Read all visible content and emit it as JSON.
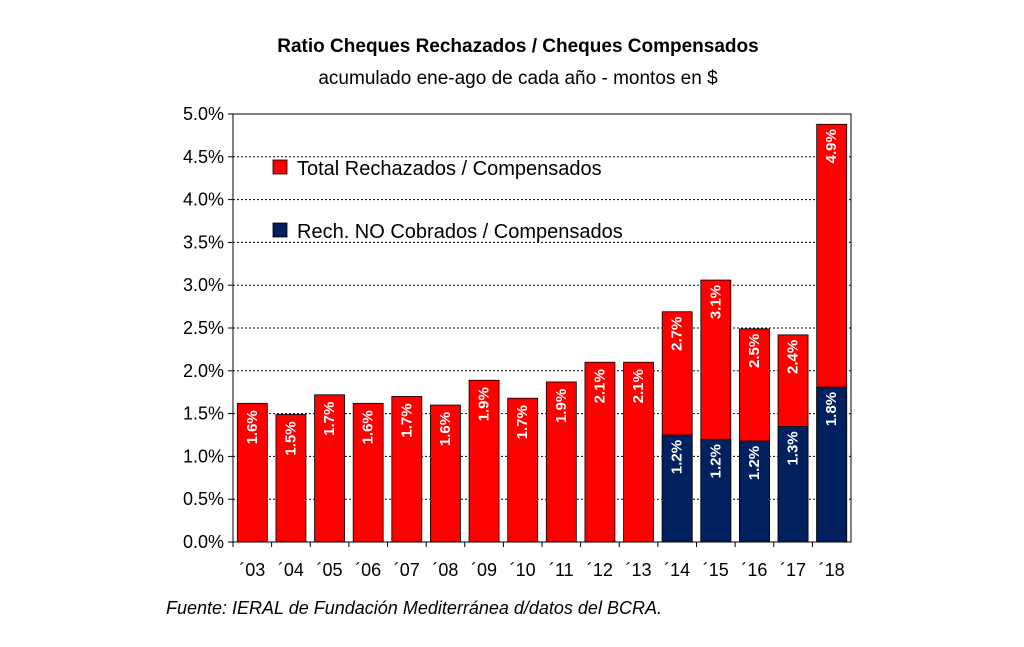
{
  "chart_data": {
    "type": "bar",
    "title": "Ratio Cheques Rechazados / Cheques Compensados",
    "subtitle": "acumulado ene-ago de cada año - montos en $",
    "categories": [
      "´03",
      "´04",
      "´05",
      "´06",
      "´07",
      "´08",
      "´09",
      "´10",
      "´11",
      "´12",
      "´13",
      "´14",
      "´15",
      "´16",
      "´17",
      "´18"
    ],
    "series": [
      {
        "name": "Total Rechazados / Compensados",
        "color": "#ff0000",
        "values": [
          1.62,
          1.49,
          1.72,
          1.62,
          1.7,
          1.6,
          1.89,
          1.68,
          1.87,
          2.1,
          2.1,
          2.69,
          3.06,
          2.49,
          2.42,
          4.88
        ],
        "labels": [
          "1.6%",
          "1.5%",
          "1.7%",
          "1.6%",
          "1.7%",
          "1.6%",
          "1.9%",
          "1.7%",
          "1.9%",
          "2.1%",
          "2.1%",
          "2.7%",
          "3.1%",
          "2.5%",
          "2.4%",
          "4.9%"
        ]
      },
      {
        "name": "Rech. NO Cobrados / Compensados",
        "color": "#002060",
        "values": [
          null,
          null,
          null,
          null,
          null,
          null,
          null,
          null,
          null,
          null,
          null,
          1.25,
          1.2,
          1.18,
          1.35,
          1.81
        ],
        "labels": [
          "",
          "",
          "",
          "",
          "",
          "",
          "",
          "",
          "",
          "",
          "",
          "1.2%",
          "1.2%",
          "1.2%",
          "1.3%",
          "1.8%"
        ]
      }
    ],
    "ylim": [
      0,
      5
    ],
    "yticks": [
      0,
      0.5,
      1,
      1.5,
      2,
      2.5,
      3,
      3.5,
      4,
      4.5,
      5
    ],
    "ytick_labels": [
      "0.0%",
      "0.5%",
      "1.0%",
      "1.5%",
      "2.0%",
      "2.5%",
      "3.0%",
      "3.5%",
      "4.0%",
      "4.5%",
      "5.0%"
    ],
    "grid": true,
    "legend_position": "top-left",
    "xlabel": "",
    "ylabel": "",
    "source": "Fuente: IERAL de Fundación Mediterránea d/datos del BCRA."
  }
}
